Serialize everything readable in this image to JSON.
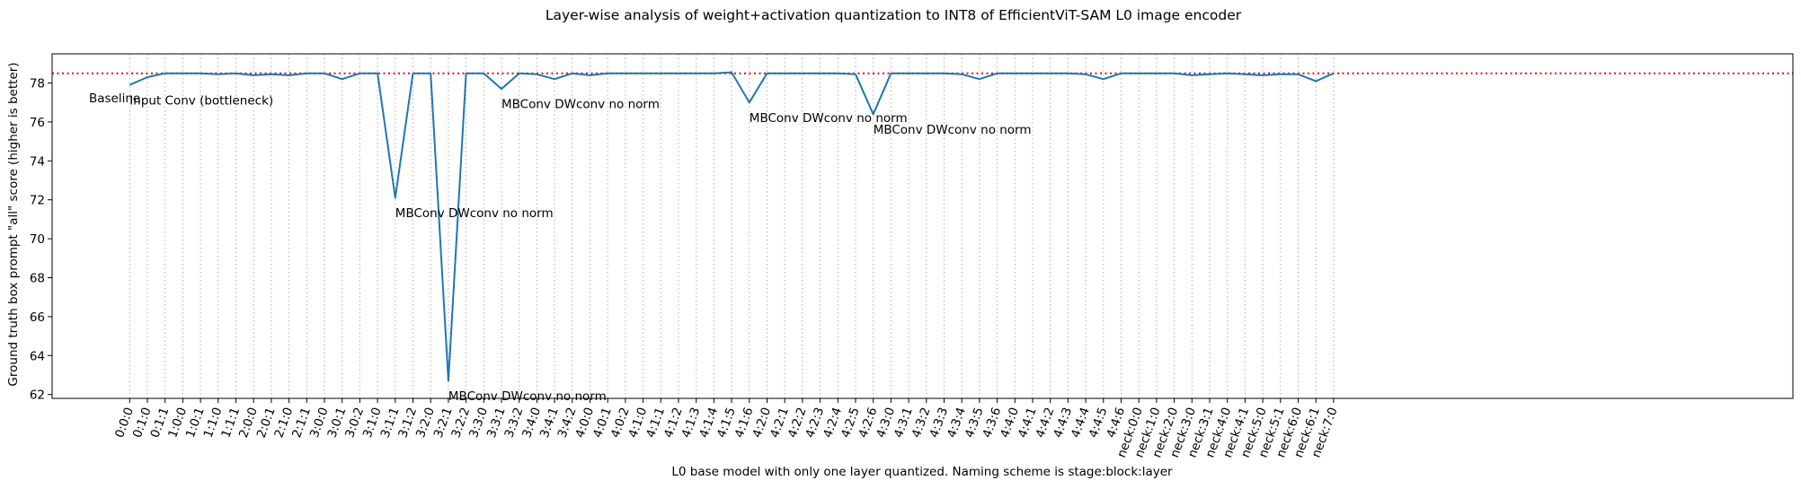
{
  "chart_data": {
    "type": "line",
    "title": "Layer-wise analysis of weight+activation quantization to INT8 of EfficientViT-SAM L0 image encoder",
    "xlabel": "L0 base model with only one layer quantized. Naming scheme is stage:block:layer",
    "ylabel": "Ground truth box prompt \"all\" score (higher is better)",
    "ylim": [
      61.8,
      79.5
    ],
    "yticks": [
      62,
      64,
      66,
      68,
      70,
      72,
      74,
      76,
      78
    ],
    "grid": "vertical dotted lines at each x tick",
    "categories": [
      "0:0:0",
      "0:1:0",
      "0:1:1",
      "1:0:0",
      "1:0:1",
      "1:1:0",
      "1:1:1",
      "2:0:0",
      "2:0:1",
      "2:1:0",
      "2:1:1",
      "3:0:0",
      "3:0:1",
      "3:0:2",
      "3:1:0",
      "3:1:1",
      "3:1:2",
      "3:2:0",
      "3:2:1",
      "3:2:2",
      "3:3:0",
      "3:3:1",
      "3:3:2",
      "3:4:0",
      "3:4:1",
      "3:4:2",
      "4:0:0",
      "4:0:1",
      "4:0:2",
      "4:1:0",
      "4:1:1",
      "4:1:2",
      "4:1:3",
      "4:1:4",
      "4:1:5",
      "4:1:6",
      "4:2:0",
      "4:2:1",
      "4:2:2",
      "4:2:3",
      "4:2:4",
      "4:2:5",
      "4:2:6",
      "4:3:0",
      "4:3:1",
      "4:3:2",
      "4:3:3",
      "4:3:4",
      "4:3:5",
      "4:3:6",
      "4:4:0",
      "4:4:1",
      "4:4:2",
      "4:4:3",
      "4:4:4",
      "4:4:5",
      "4:4:6",
      "neck:0:0",
      "neck:1:0",
      "neck:2:0",
      "neck:3:0",
      "neck:3:1",
      "neck:4:0",
      "neck:4:1",
      "neck:5:0",
      "neck:5:1",
      "neck:6:0",
      "neck:6:1",
      "neck:7:0"
    ],
    "series": [
      {
        "color": "#1f77b4",
        "values": [
          77.9,
          78.3,
          78.5,
          78.5,
          78.5,
          78.45,
          78.5,
          78.4,
          78.45,
          78.4,
          78.5,
          78.5,
          78.2,
          78.5,
          78.5,
          72.1,
          78.5,
          78.5,
          62.7,
          78.5,
          78.5,
          77.7,
          78.5,
          78.45,
          78.2,
          78.5,
          78.4,
          78.5,
          78.5,
          78.5,
          78.5,
          78.5,
          78.5,
          78.5,
          78.55,
          77.0,
          78.5,
          78.5,
          78.5,
          78.5,
          78.5,
          78.45,
          76.4,
          78.5,
          78.5,
          78.5,
          78.5,
          78.45,
          78.2,
          78.5,
          78.5,
          78.5,
          78.5,
          78.5,
          78.45,
          78.2,
          78.5,
          78.5,
          78.5,
          78.5,
          78.4,
          78.45,
          78.5,
          78.45,
          78.4,
          78.45,
          78.45,
          78.1,
          78.5
        ]
      }
    ],
    "baseline": {
      "value": 78.5,
      "color": "#ff0000",
      "style": "dotted"
    },
    "annotations": [
      {
        "text": "Baseline",
        "x_index": -2.3,
        "y": 77.0
      },
      {
        "text": "Input Conv (bottleneck)",
        "x_index": 0,
        "y": 76.9
      },
      {
        "text": "MBConv DWconv no norm",
        "x_index": 15,
        "y": 71.1
      },
      {
        "text": "MBConv DWconv no norm",
        "x_index": 18,
        "y": 61.7
      },
      {
        "text": "MBConv DWconv no norm",
        "x_index": 21,
        "y": 76.7
      },
      {
        "text": "MBConv DWconv no norm",
        "x_index": 35,
        "y": 76.0
      },
      {
        "text": "MBConv DWconv no norm",
        "x_index": 42,
        "y": 75.4
      }
    ]
  }
}
